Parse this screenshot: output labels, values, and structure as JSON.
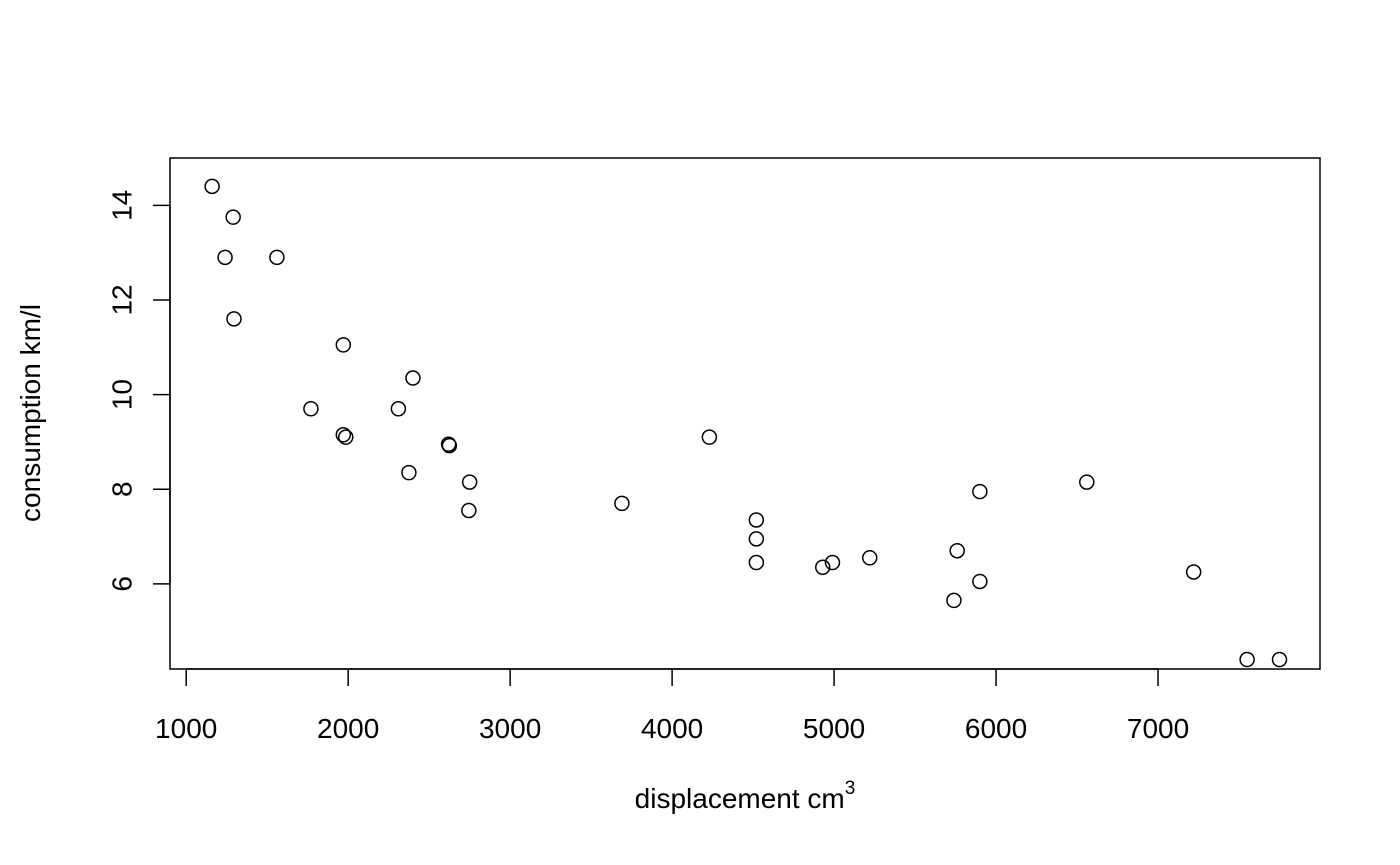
{
  "chart_data": {
    "type": "scatter",
    "title": "",
    "xlabel": "displacement   cm",
    "xlabel_superscript": "3",
    "ylabel": "consumption  km/l",
    "xlim": [
      900,
      8000
    ],
    "ylim": [
      4.2,
      15.0
    ],
    "x_ticks": [
      1000,
      2000,
      3000,
      4000,
      5000,
      6000,
      7000
    ],
    "y_ticks": [
      6,
      8,
      10,
      12,
      14
    ],
    "grid": false,
    "legend": "none",
    "marker": "open-circle",
    "points": [
      {
        "x": 1160,
        "y": 14.4
      },
      {
        "x": 1290,
        "y": 13.75
      },
      {
        "x": 1240,
        "y": 12.9
      },
      {
        "x": 1560,
        "y": 12.9
      },
      {
        "x": 1295,
        "y": 11.6
      },
      {
        "x": 1970,
        "y": 11.05
      },
      {
        "x": 2400,
        "y": 10.35
      },
      {
        "x": 1770,
        "y": 9.7
      },
      {
        "x": 2310,
        "y": 9.7
      },
      {
        "x": 1970,
        "y": 9.15
      },
      {
        "x": 1985,
        "y": 9.1
      },
      {
        "x": 2620,
        "y": 8.95
      },
      {
        "x": 2625,
        "y": 8.92
      },
      {
        "x": 2375,
        "y": 8.35
      },
      {
        "x": 2750,
        "y": 8.15
      },
      {
        "x": 2745,
        "y": 7.55
      },
      {
        "x": 3690,
        "y": 7.7
      },
      {
        "x": 4230,
        "y": 9.1
      },
      {
        "x": 4520,
        "y": 7.35
      },
      {
        "x": 4520,
        "y": 6.95
      },
      {
        "x": 4520,
        "y": 6.45
      },
      {
        "x": 4930,
        "y": 6.35
      },
      {
        "x": 4990,
        "y": 6.45
      },
      {
        "x": 5220,
        "y": 6.55
      },
      {
        "x": 5900,
        "y": 7.95
      },
      {
        "x": 5760,
        "y": 6.7
      },
      {
        "x": 5900,
        "y": 6.05
      },
      {
        "x": 5740,
        "y": 5.65
      },
      {
        "x": 6560,
        "y": 8.15
      },
      {
        "x": 7220,
        "y": 6.25
      },
      {
        "x": 7550,
        "y": 4.4
      },
      {
        "x": 7750,
        "y": 4.4
      }
    ]
  }
}
